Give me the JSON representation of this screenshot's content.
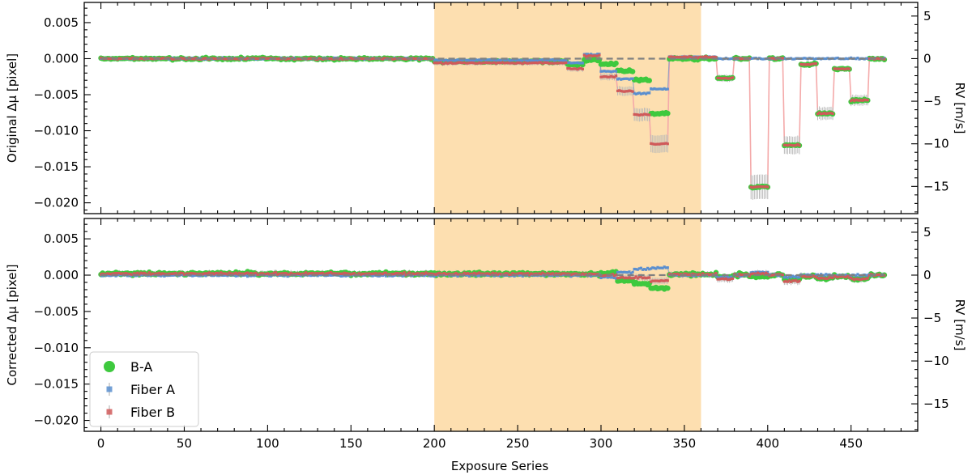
{
  "colors": {
    "ba": "#3ec93e",
    "fiberA": "#5b8fcf",
    "fiberB": "#d05a5a",
    "bridge": "#f4a9a9",
    "errorbar": "#b8b8b8",
    "band": "#fddfb0",
    "zeroline": "#808080"
  },
  "xlabel": "Exposure Series",
  "legend": {
    "position": "lower-left",
    "entries": [
      {
        "key": "ba",
        "label": "B-A"
      },
      {
        "key": "fiberA",
        "label": "Fiber A"
      },
      {
        "key": "fiberB",
        "label": "Fiber B"
      }
    ]
  },
  "chart_data": [
    {
      "type": "scatter",
      "name": "original",
      "ylabel": "Original Δμ  [pixel]",
      "ylabel_right": "RV [m/s]",
      "xlim": [
        -10,
        490
      ],
      "ylim": [
        -0.0215,
        0.0078
      ],
      "ylim_right": [
        -18.2,
        6.6
      ],
      "xticks": [
        0,
        50,
        100,
        150,
        200,
        250,
        300,
        350,
        400,
        450
      ],
      "yticks": [
        0.005,
        0.0,
        -0.005,
        -0.01,
        -0.015,
        -0.02
      ],
      "ytick_labels": [
        "0.005",
        "0.000",
        "−0.005",
        "−0.010",
        "−0.015",
        "−0.020"
      ],
      "yticks_right": [
        5,
        0,
        -5,
        -10,
        -15
      ],
      "ytick_labels_right": [
        "5",
        "0",
        "−5",
        "−10",
        "−15"
      ],
      "shaded_x": [
        200,
        360
      ],
      "zero_line": true,
      "x_range": [
        0,
        470
      ],
      "noise": 0.00012,
      "segments": [
        {
          "x": [
            0,
            199
          ],
          "a": 0.0,
          "b": 0.0
        },
        {
          "x": [
            200,
            279
          ],
          "a": -0.0002,
          "b": -0.0006
        },
        {
          "x": [
            280,
            289
          ],
          "a": -0.0006,
          "b": -0.0014
        },
        {
          "x": [
            290,
            299
          ],
          "a": 0.0006,
          "b": 0.0004
        },
        {
          "x": [
            300,
            309
          ],
          "a": -0.0018,
          "b": -0.0025
        },
        {
          "x": [
            310,
            319
          ],
          "a": -0.0028,
          "b": -0.0045
        },
        {
          "x": [
            320,
            329
          ],
          "a": -0.0048,
          "b": -0.0078
        },
        {
          "x": [
            330,
            340
          ],
          "a": -0.0042,
          "b": -0.0118
        },
        {
          "x": [
            341,
            369
          ],
          "a": 0.0002,
          "b": 0.0002
        },
        {
          "x": [
            370,
            379
          ],
          "a": 0.0,
          "b": -0.0027
        },
        {
          "x": [
            380,
            389
          ],
          "a": 0.0,
          "b": 0.0
        },
        {
          "x": [
            390,
            400
          ],
          "a": 0.0,
          "b": -0.0178
        },
        {
          "x": [
            401,
            409
          ],
          "a": 0.0,
          "b": 0.0
        },
        {
          "x": [
            410,
            419
          ],
          "a": 0.0,
          "b": -0.012
        },
        {
          "x": [
            420,
            429
          ],
          "a": 0.0,
          "b": -0.0008
        },
        {
          "x": [
            430,
            439
          ],
          "a": 0.0,
          "b": -0.0076
        },
        {
          "x": [
            440,
            449
          ],
          "a": 0.0,
          "b": -0.0014
        },
        {
          "x": [
            450,
            460
          ],
          "a": 0.0,
          "b": -0.0058
        },
        {
          "x": [
            461,
            470
          ],
          "a": 0.0,
          "b": 0.0
        }
      ]
    },
    {
      "type": "scatter",
      "name": "corrected",
      "ylabel": "Corrected Δμ  [pixel]",
      "ylabel_right": "RV [m/s]",
      "xlim": [
        -10,
        490
      ],
      "ylim": [
        -0.0215,
        0.0078
      ],
      "ylim_right": [
        -18.2,
        6.6
      ],
      "xticks": [
        0,
        50,
        100,
        150,
        200,
        250,
        300,
        350,
        400,
        450
      ],
      "xtick_labels": [
        "0",
        "50",
        "100",
        "150",
        "200",
        "250",
        "300",
        "350",
        "400",
        "450"
      ],
      "yticks": [
        0.005,
        0.0,
        -0.005,
        -0.01,
        -0.015,
        -0.02
      ],
      "ytick_labels": [
        "0.005",
        "0.000",
        "−0.005",
        "−0.010",
        "−0.015",
        "−0.020"
      ],
      "yticks_right": [
        5,
        0,
        -5,
        -10,
        -15
      ],
      "ytick_labels_right": [
        "5",
        "0",
        "−5",
        "−10",
        "−15"
      ],
      "shaded_x": [
        200,
        360
      ],
      "zero_line": true,
      "x_range": [
        0,
        470
      ],
      "noise": 0.00018,
      "segments": [
        {
          "x": [
            0,
            199
          ],
          "a": 0.0,
          "b": 0.0002
        },
        {
          "x": [
            200,
            279
          ],
          "a": 0.0,
          "b": 0.0002
        },
        {
          "x": [
            280,
            299
          ],
          "a": 0.0,
          "b": 0.0001
        },
        {
          "x": [
            300,
            309
          ],
          "a": -0.0003,
          "b": 0.0
        },
        {
          "x": [
            310,
            319
          ],
          "a": 0.0004,
          "b": -0.0004
        },
        {
          "x": [
            320,
            329
          ],
          "a": 0.0008,
          "b": -0.0003
        },
        {
          "x": [
            330,
            340
          ],
          "a": 0.001,
          "b": -0.0008
        },
        {
          "x": [
            341,
            369
          ],
          "a": 0.0,
          "b": 0.0001
        },
        {
          "x": [
            370,
            379
          ],
          "a": -0.0003,
          "b": -0.0005
        },
        {
          "x": [
            380,
            389
          ],
          "a": 0.0,
          "b": 0.0
        },
        {
          "x": [
            390,
            400
          ],
          "a": 0.0004,
          "b": 0.0002
        },
        {
          "x": [
            401,
            409
          ],
          "a": 0.0,
          "b": 0.0
        },
        {
          "x": [
            410,
            419
          ],
          "a": -0.0002,
          "b": -0.0008
        },
        {
          "x": [
            420,
            429
          ],
          "a": 0.0,
          "b": -0.0002
        },
        {
          "x": [
            430,
            439
          ],
          "a": 0.0,
          "b": -0.0004
        },
        {
          "x": [
            440,
            449
          ],
          "a": 0.0,
          "b": -0.0002
        },
        {
          "x": [
            450,
            460
          ],
          "a": 0.0,
          "b": -0.0005
        },
        {
          "x": [
            461,
            470
          ],
          "a": 0.0,
          "b": 0.0
        }
      ]
    }
  ]
}
